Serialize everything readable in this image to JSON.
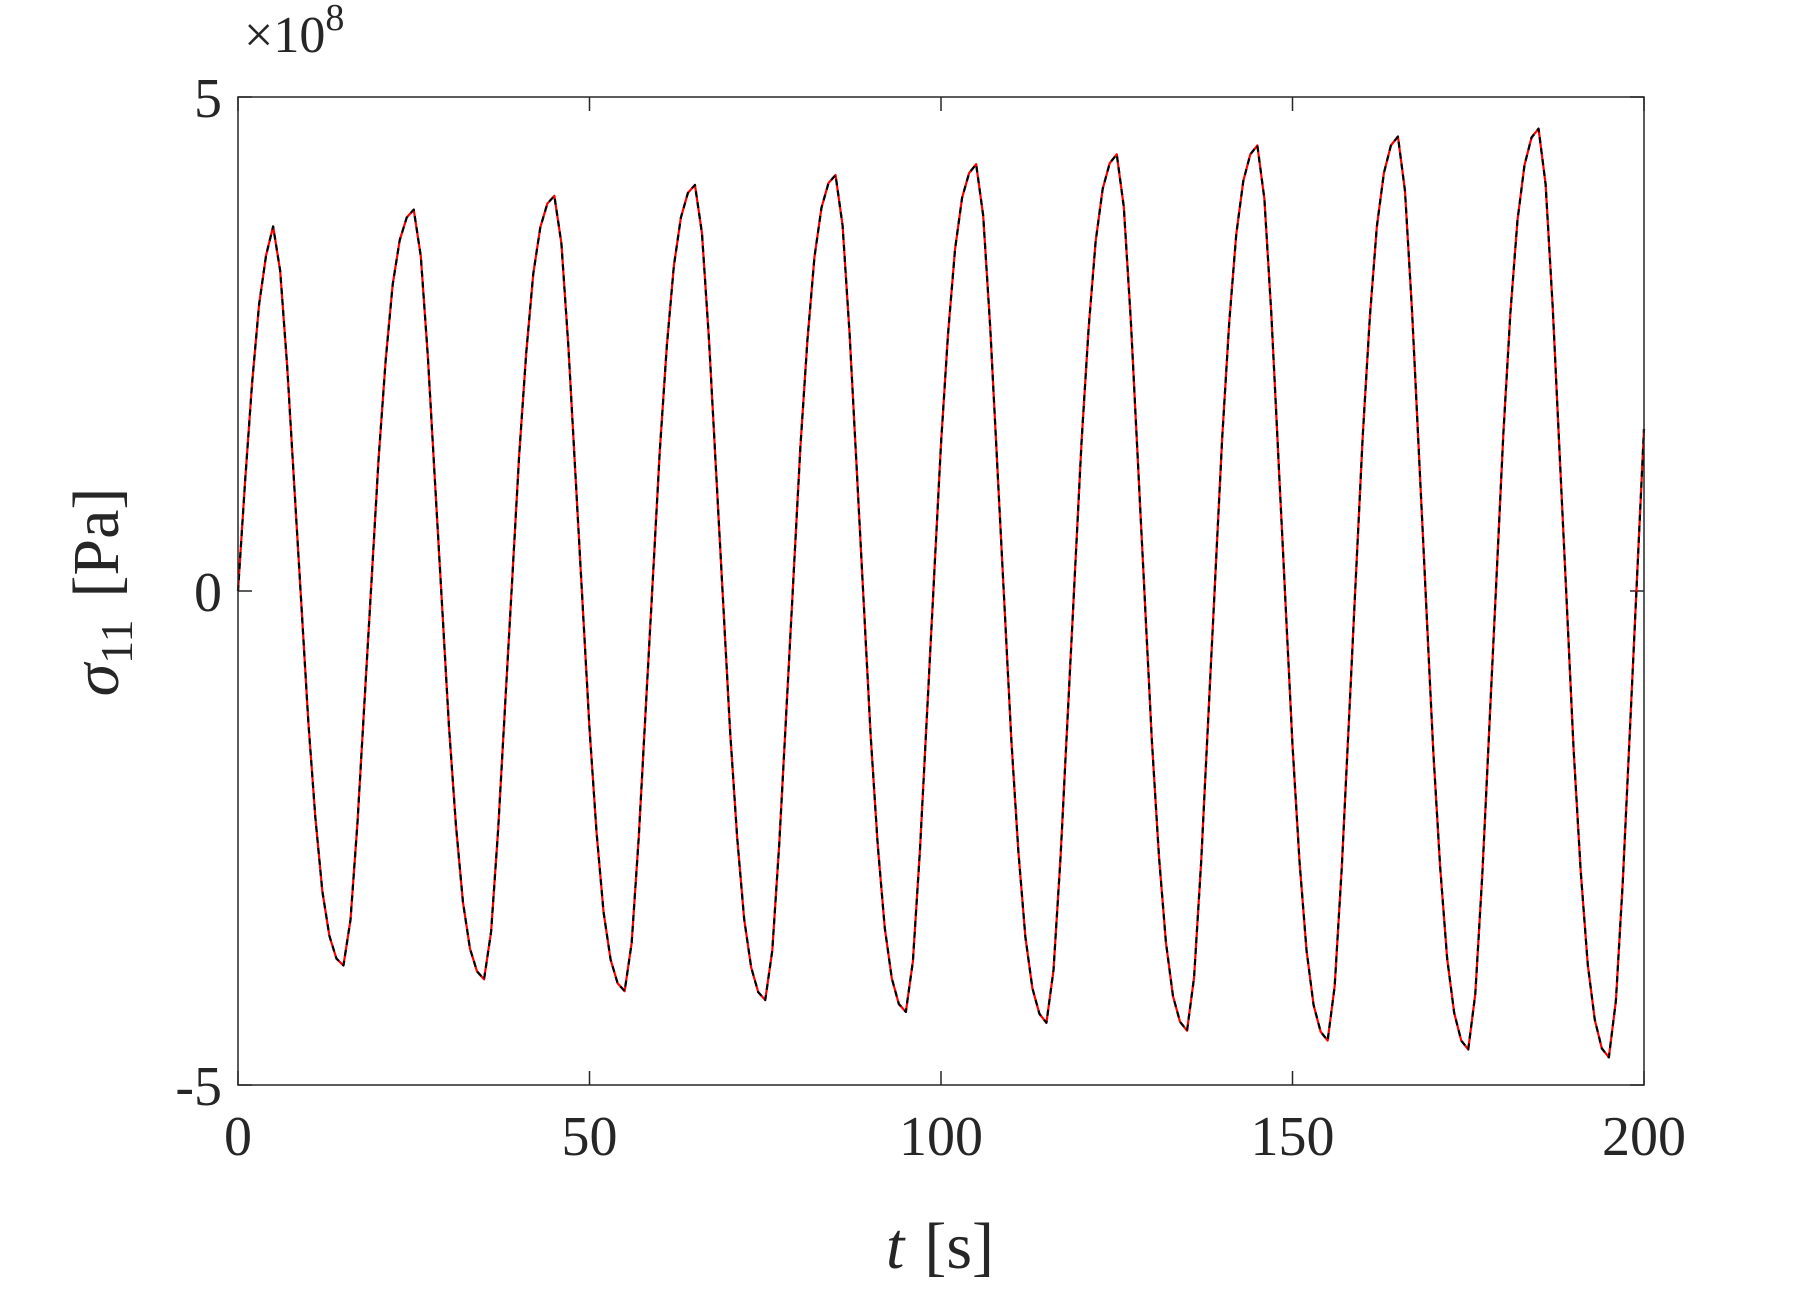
{
  "chart_data": {
    "type": "line",
    "ylabel_symbol": "σ",
    "ylabel_subscript": "11",
    "ylabel_unit": "[Pa]",
    "xlabel_symbol": "t",
    "xlabel_unit": "[s]",
    "y_multiplier": "×10",
    "y_multiplier_exponent": "8",
    "xlim": [
      0,
      200
    ],
    "xticks": [
      0,
      50,
      100,
      150,
      200
    ],
    "ylim": [
      -5,
      5
    ],
    "yticks": [
      -5,
      0,
      5
    ],
    "x": [
      0,
      1,
      2,
      3,
      4,
      5,
      6,
      7,
      8,
      9,
      10,
      11,
      12,
      13,
      14,
      15,
      16,
      17,
      18,
      19,
      20,
      21,
      22,
      23,
      24,
      25,
      26,
      27,
      28,
      29,
      30,
      31,
      32,
      33,
      34,
      35,
      36,
      37,
      38,
      39,
      40,
      41,
      42,
      43,
      44,
      45,
      46,
      47,
      48,
      49,
      50,
      51,
      52,
      53,
      54,
      55,
      56,
      57,
      58,
      59,
      60,
      61,
      62,
      63,
      64,
      65,
      66,
      67,
      68,
      69,
      70,
      71,
      72,
      73,
      74,
      75,
      76,
      77,
      78,
      79,
      80,
      81,
      82,
      83,
      84,
      85,
      86,
      87,
      88,
      89,
      90,
      91,
      92,
      93,
      94,
      95,
      96,
      97,
      98,
      99,
      100,
      101,
      102,
      103,
      104,
      105,
      106,
      107,
      108,
      109,
      110,
      111,
      112,
      113,
      114,
      115,
      116,
      117,
      118,
      119,
      120,
      121,
      122,
      123,
      124,
      125,
      126,
      127,
      128,
      129,
      130,
      131,
      132,
      133,
      134,
      135,
      136,
      137,
      138,
      139,
      140,
      141,
      142,
      143,
      144,
      145,
      146,
      147,
      148,
      149,
      150,
      151,
      152,
      153,
      154,
      155,
      156,
      157,
      158,
      159,
      160,
      161,
      162,
      163,
      164,
      165,
      166,
      167,
      168,
      169,
      170,
      171,
      172,
      173,
      174,
      175,
      176,
      177,
      178,
      179,
      180,
      181,
      182,
      183,
      184,
      185,
      186,
      187,
      188,
      189,
      190,
      191,
      192,
      193,
      194,
      195,
      196,
      197,
      198,
      199,
      200
    ],
    "series": [
      {
        "color": "#ff0000",
        "dash": false,
        "values": [
          0,
          1.1,
          2.1,
          2.9,
          3.4,
          3.69,
          3.24,
          2.27,
          1.07,
          -0.12,
          -1.32,
          -2.29,
          -3.04,
          -3.49,
          -3.72,
          -3.79,
          -3.33,
          -2.34,
          -1.11,
          0.11,
          1.34,
          2.33,
          3.1,
          3.55,
          3.78,
          3.86,
          3.39,
          2.38,
          1.13,
          -0.11,
          -1.36,
          -2.37,
          -3.15,
          -3.62,
          -3.85,
          -3.93,
          -3.45,
          -2.42,
          -1.15,
          0.11,
          1.38,
          2.41,
          3.21,
          3.68,
          3.92,
          4.0,
          3.52,
          2.47,
          1.18,
          -0.11,
          -1.39,
          -2.44,
          -3.25,
          -3.73,
          -3.97,
          -4.05,
          -3.56,
          -2.5,
          -1.19,
          0.11,
          1.42,
          2.48,
          3.29,
          3.78,
          4.03,
          4.11,
          3.62,
          2.54,
          1.22,
          -0.1,
          -1.42,
          -2.49,
          -3.32,
          -3.81,
          -4.06,
          -4.14,
          -3.64,
          -2.55,
          -1.22,
          0.12,
          1.46,
          2.54,
          3.38,
          3.88,
          4.13,
          4.21,
          3.7,
          2.6,
          1.25,
          -0.11,
          -1.47,
          -2.57,
          -3.41,
          -3.92,
          -4.18,
          -4.26,
          -3.75,
          -2.63,
          -1.26,
          0.12,
          1.49,
          2.6,
          3.46,
          3.98,
          4.23,
          4.32,
          3.8,
          2.67,
          1.28,
          -0.11,
          -1.5,
          -2.63,
          -3.5,
          -4.02,
          -4.28,
          -4.37,
          -3.84,
          -2.7,
          -1.29,
          0.11,
          1.52,
          2.66,
          3.54,
          4.07,
          4.33,
          4.42,
          3.89,
          2.74,
          1.32,
          -0.1,
          -1.52,
          -2.68,
          -3.56,
          -4.1,
          -4.36,
          -4.45,
          -3.91,
          -2.75,
          -1.31,
          0.12,
          1.55,
          2.72,
          3.61,
          4.15,
          4.42,
          4.51,
          3.97,
          2.79,
          1.34,
          -0.11,
          -1.56,
          -2.74,
          -3.64,
          -4.19,
          -4.46,
          -4.55,
          -4.0,
          -2.81,
          -1.35,
          0.12,
          1.58,
          2.77,
          3.69,
          4.23,
          4.51,
          4.6,
          4.05,
          2.84,
          1.37,
          -0.11,
          -1.59,
          -2.79,
          -3.72,
          -4.27,
          -4.55,
          -4.64,
          -4.08,
          -2.87,
          -1.38,
          0.11,
          1.6,
          2.82,
          3.75,
          4.31,
          4.59,
          4.68,
          4.12,
          2.89,
          1.39,
          -0.11,
          -1.62,
          -2.84,
          -3.78,
          -4.34,
          -4.63,
          -4.72,
          -4.15,
          -2.92,
          -1.4,
          0.12,
          1.64
        ]
      },
      {
        "color": "#000000",
        "dash": true,
        "values": [
          0,
          1.1,
          2.1,
          2.9,
          3.4,
          3.69,
          3.24,
          2.27,
          1.07,
          -0.12,
          -1.32,
          -2.29,
          -3.04,
          -3.49,
          -3.72,
          -3.79,
          -3.33,
          -2.34,
          -1.11,
          0.11,
          1.34,
          2.33,
          3.1,
          3.55,
          3.78,
          3.86,
          3.39,
          2.38,
          1.13,
          -0.11,
          -1.36,
          -2.37,
          -3.15,
          -3.62,
          -3.85,
          -3.93,
          -3.45,
          -2.42,
          -1.15,
          0.11,
          1.38,
          2.41,
          3.21,
          3.68,
          3.92,
          4.0,
          3.52,
          2.47,
          1.18,
          -0.11,
          -1.39,
          -2.44,
          -3.25,
          -3.73,
          -3.97,
          -4.05,
          -3.56,
          -2.5,
          -1.19,
          0.11,
          1.42,
          2.48,
          3.29,
          3.78,
          4.03,
          4.11,
          3.62,
          2.54,
          1.22,
          -0.1,
          -1.42,
          -2.49,
          -3.32,
          -3.81,
          -4.06,
          -4.14,
          -3.64,
          -2.55,
          -1.22,
          0.12,
          1.46,
          2.54,
          3.38,
          3.88,
          4.13,
          4.21,
          3.7,
          2.6,
          1.25,
          -0.11,
          -1.47,
          -2.57,
          -3.41,
          -3.92,
          -4.18,
          -4.26,
          -3.75,
          -2.63,
          -1.26,
          0.12,
          1.49,
          2.6,
          3.46,
          3.98,
          4.23,
          4.32,
          3.8,
          2.67,
          1.28,
          -0.11,
          -1.5,
          -2.63,
          -3.5,
          -4.02,
          -4.28,
          -4.37,
          -3.84,
          -2.7,
          -1.29,
          0.11,
          1.52,
          2.66,
          3.54,
          4.07,
          4.33,
          4.42,
          3.89,
          2.74,
          1.32,
          -0.1,
          -1.52,
          -2.68,
          -3.56,
          -4.1,
          -4.36,
          -4.45,
          -3.91,
          -2.75,
          -1.31,
          0.12,
          1.55,
          2.72,
          3.61,
          4.15,
          4.42,
          4.51,
          3.97,
          2.79,
          1.34,
          -0.11,
          -1.56,
          -2.74,
          -3.64,
          -4.19,
          -4.46,
          -4.55,
          -4.0,
          -2.81,
          -1.35,
          0.12,
          1.58,
          2.77,
          3.69,
          4.23,
          4.51,
          4.6,
          4.05,
          2.84,
          1.37,
          -0.11,
          -1.59,
          -2.79,
          -3.72,
          -4.27,
          -4.55,
          -4.64,
          -4.08,
          -2.87,
          -1.38,
          0.11,
          1.6,
          2.82,
          3.75,
          4.31,
          4.59,
          4.68,
          4.12,
          2.89,
          1.39,
          -0.11,
          -1.62,
          -2.84,
          -3.78,
          -4.34,
          -4.63,
          -4.72,
          -4.15,
          -2.92,
          -1.4,
          0.12,
          1.64
        ]
      }
    ]
  }
}
